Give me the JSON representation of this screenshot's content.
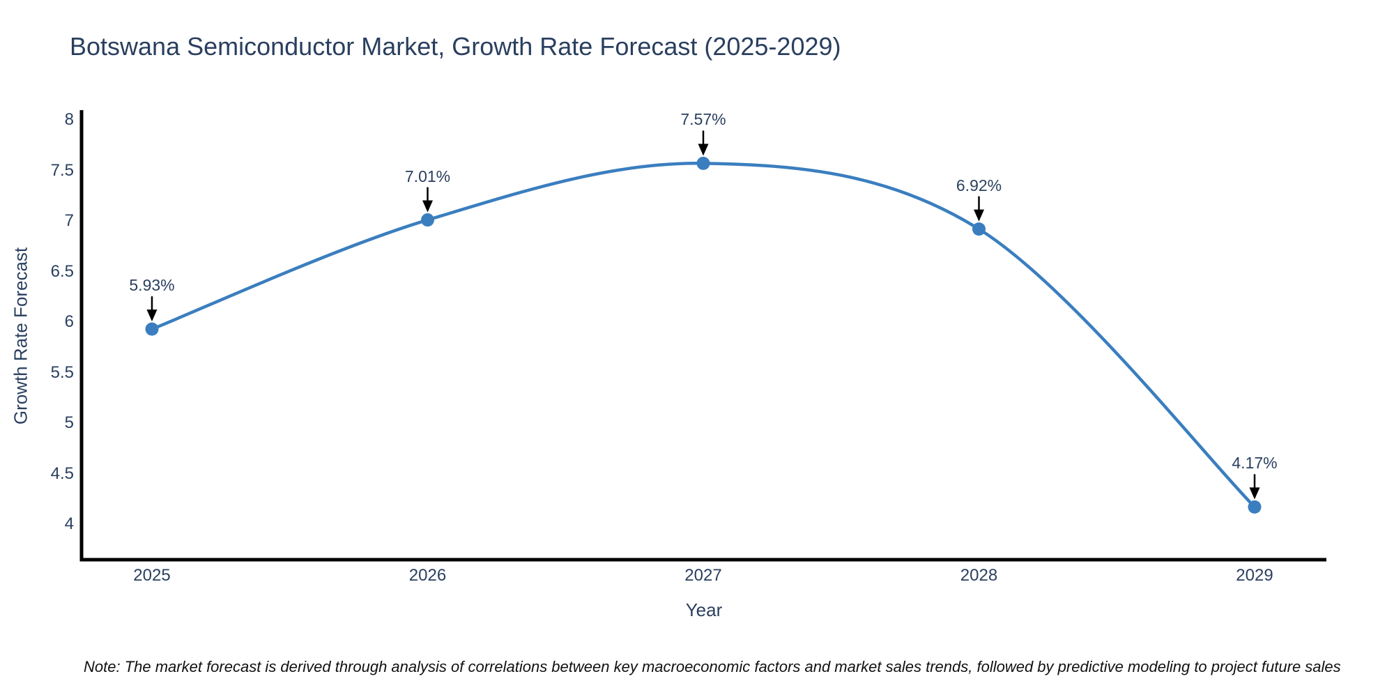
{
  "title": "Botswana Semiconductor Market, Growth Rate Forecast (2025-2029)",
  "note": "Note: The market forecast is derived through analysis of correlations between key macroeconomic factors and market sales trends, followed by predictive modeling to project future sales",
  "chart_data": {
    "type": "line",
    "title": "Botswana Semiconductor Market, Growth Rate Forecast (2025-2029)",
    "x": [
      "2025",
      "2026",
      "2027",
      "2028",
      "2029"
    ],
    "series": [
      {
        "name": "Growth Rate Forecast",
        "values": [
          5.93,
          7.01,
          7.57,
          6.92,
          4.17
        ]
      }
    ],
    "point_labels": [
      "5.93%",
      "7.01%",
      "7.57%",
      "6.92%",
      "4.17%"
    ],
    "xlabel": "Year",
    "ylabel": "Growth Rate Forecast",
    "ylim": [
      3.65,
      8.1
    ],
    "yticks": [
      8,
      7.5,
      7,
      6.5,
      6,
      5.5,
      5,
      4.5,
      4
    ],
    "ytick_labels": [
      "8",
      "7.5",
      "7",
      "6.5",
      "6",
      "5.5",
      "5",
      "4.5",
      "4"
    ],
    "grid": false,
    "legend": false,
    "smooth": true,
    "line_color": "#3a7ebf",
    "marker_color": "#3a7ebf",
    "arrow_color": "#000000",
    "axis_line_color": "#000000",
    "text_color": "#2a3f5f"
  }
}
